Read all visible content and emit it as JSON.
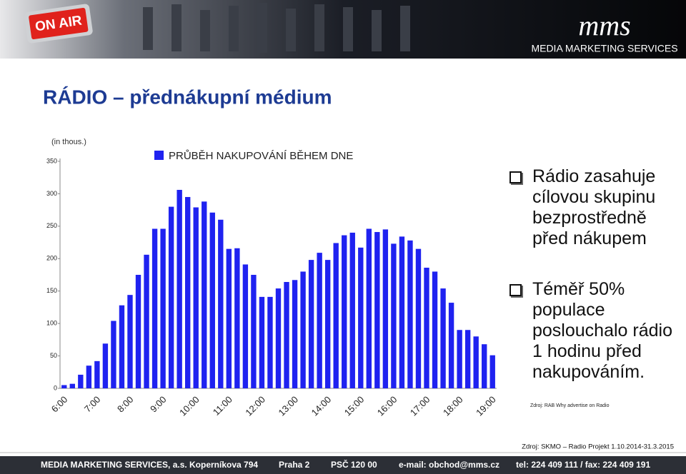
{
  "header": {
    "sign": "ON AIR",
    "logo": "MEDIA MARKETING SERVICES"
  },
  "title": "RÁDIO – přednákupní médium",
  "chart_data": {
    "type": "bar",
    "legend": "PRŮBĚH NAKUPOVÁNÍ BĚHEM DNE",
    "y_unit": "(in thous.)",
    "color": "#1f22f0",
    "categories": [
      "6:00",
      null,
      null,
      null,
      "7:00",
      null,
      null,
      null,
      "8:00",
      null,
      null,
      null,
      "9:00",
      null,
      null,
      null,
      "10:00",
      null,
      null,
      null,
      "11:00",
      null,
      null,
      null,
      "12:00",
      null,
      null,
      null,
      "13:00",
      null,
      null,
      null,
      "14:00",
      null,
      null,
      null,
      "15:00",
      null,
      null,
      null,
      "16:00",
      null,
      null,
      null,
      "17:00",
      null,
      null,
      null,
      "18:00",
      null,
      null,
      null,
      "19:00"
    ],
    "values": [
      5,
      7,
      21,
      35,
      42,
      69,
      104,
      128,
      144,
      175,
      206,
      246,
      246,
      280,
      306,
      295,
      279,
      288,
      271,
      260,
      215,
      216,
      191,
      175,
      141,
      141,
      154,
      164,
      167,
      180,
      198,
      209,
      198,
      224,
      236,
      240,
      217,
      246,
      241,
      245,
      223,
      234,
      228,
      215,
      186,
      180,
      154,
      132,
      90,
      90,
      80,
      68,
      51
    ],
    "ylim": [
      0,
      350
    ],
    "yticks": [
      0,
      50,
      100,
      150,
      200,
      250,
      300,
      350
    ]
  },
  "bullets": [
    "Rádio zasahuje cílovou skupinu bezprostředně před nákupem",
    "Téměř 50% populace poslouchalo rádio 1 hodinu před nakupováním."
  ],
  "bullet_source": "Zdroj: RAB Why advertise on Radio",
  "source": "Zdroj: SKMO – Radio Projekt 1.10.2014-31.3.2015",
  "footer": [
    "MEDIA MARKETING SERVICES, a.s.",
    "Koperníkova 794",
    "Praha 2",
    "PSČ 120 00",
    "e-mail: obchod@mms.cz",
    "tel: 224 409 111 / fax: 224 409 191"
  ]
}
